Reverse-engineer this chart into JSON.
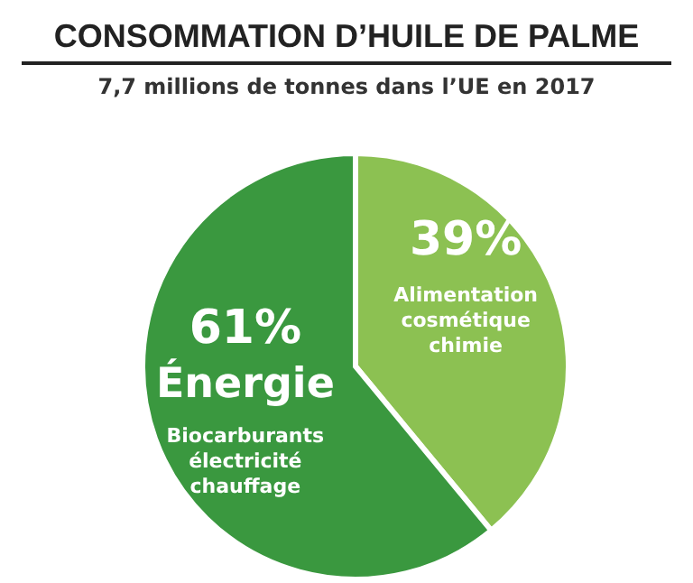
{
  "chart_data": {
    "type": "pie",
    "title": "CONSOMMATION D’HUILE DE PALME",
    "subtitle": "7,7 millions de tonnes dans l’UE en 2017",
    "categories": [
      "Alimentation\ncosmétique\nchimie",
      "Énergie"
    ],
    "values": [
      39,
      61
    ],
    "colors": [
      "#8cc152",
      "#3a983f"
    ],
    "value_labels": [
      "39%",
      "61%"
    ],
    "annotations": [
      "Biocarburants\nélectricité\nchauffage"
    ],
    "legend": false
  }
}
